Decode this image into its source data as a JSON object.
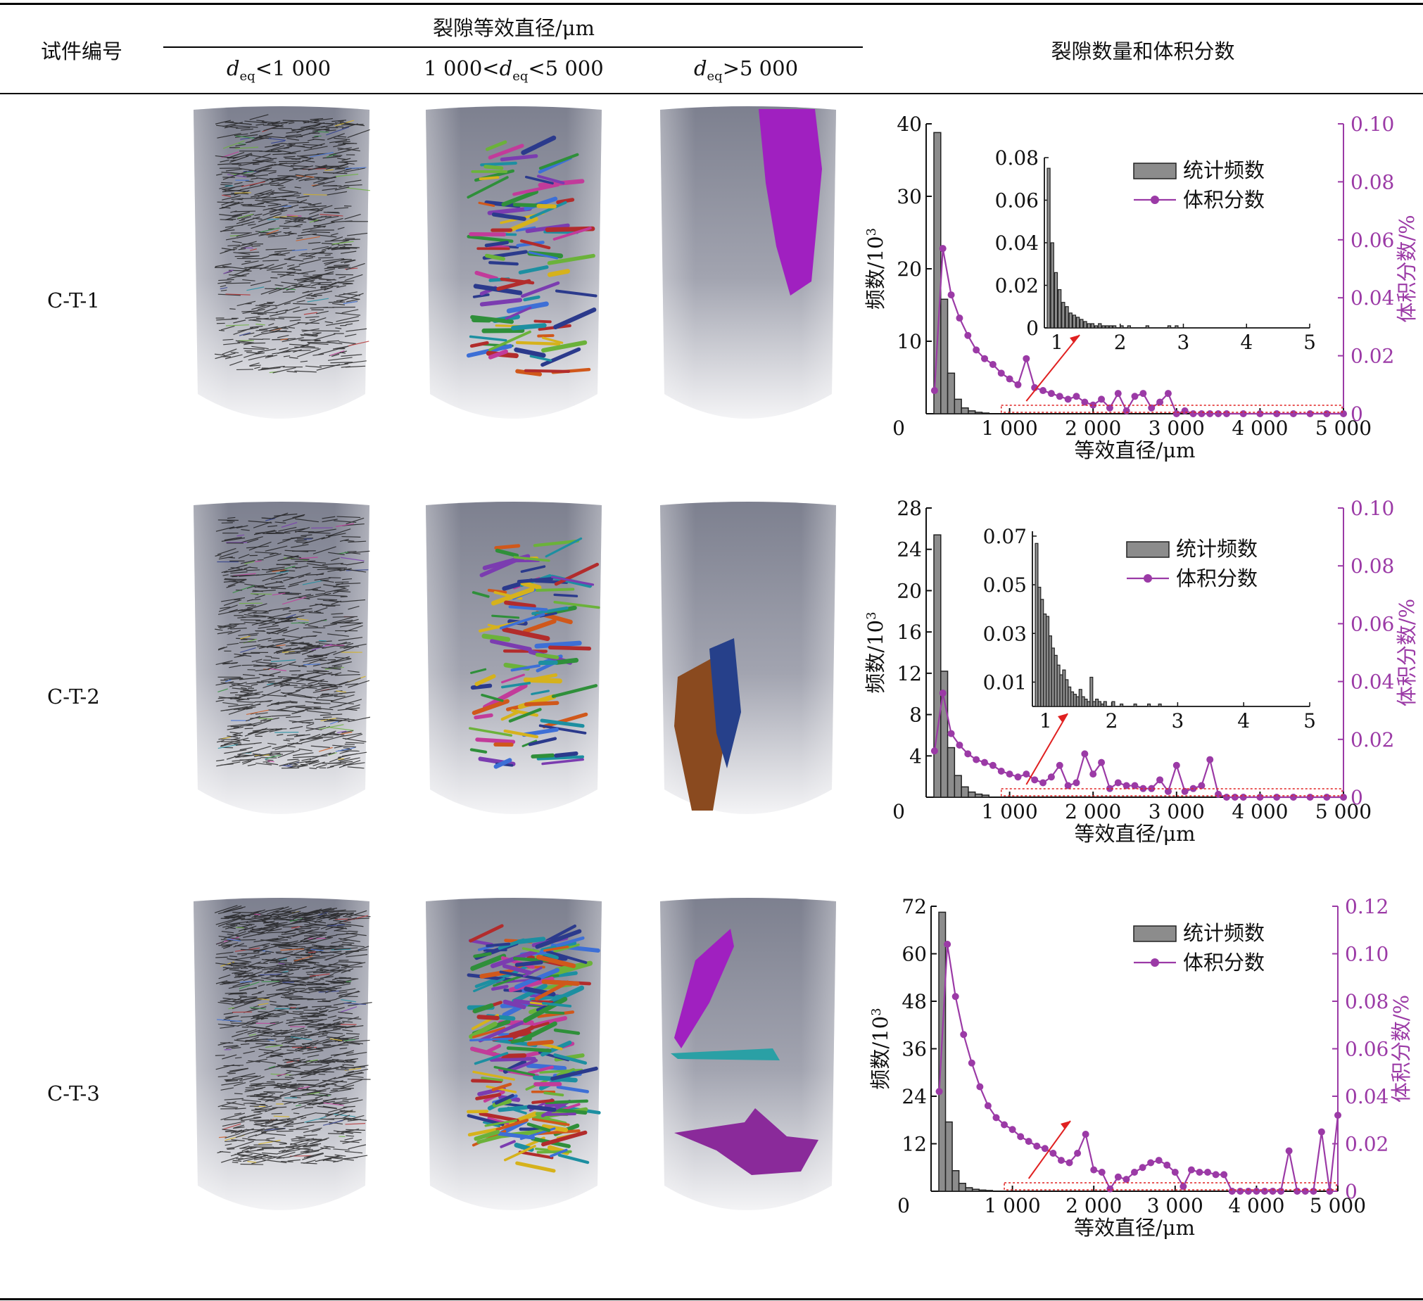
{
  "table": {
    "col_specimen": "试件编号",
    "col_diameter_group": "裂隙等效直径/μm",
    "col_d_small": {
      "d": "d",
      "sub": "eq",
      "rest": "<1 000"
    },
    "col_d_mid": {
      "pre": "1 000<",
      "d": "d",
      "sub": "eq",
      "rest": "<5 000"
    },
    "col_d_large": {
      "d": "d",
      "sub": "eq",
      "rest": ">5 000"
    },
    "col_stats": "裂隙数量和体积分数"
  },
  "rows": [
    {
      "label": "C-T-1"
    },
    {
      "label": "C-T-2"
    },
    {
      "label": "C-T-3"
    }
  ],
  "colors": {
    "bar": "#8c8c8c",
    "volume": "#9b3aa6",
    "callout": "#e02020",
    "cyl_top": "#7d808f",
    "cyl_bottom": "#f3f3f5"
  },
  "chart_data": [
    {
      "type": "bar+line",
      "xlabel": "等效直径/μm",
      "ylabel_left": "频数/10",
      "ylabel_left_sup": "3",
      "ylabel_right": "体积分数/%",
      "x_ticks": [
        "1 000",
        "2 000",
        "3 000",
        "4 000",
        "5 000"
      ],
      "y_ticks_left": [
        "0",
        "10",
        "20",
        "30",
        "40"
      ],
      "y_ticks_right": [
        "0",
        "0.02",
        "0.04",
        "0.06",
        "0.08",
        "0.10"
      ],
      "xlim": [
        0,
        5000
      ],
      "ylim_left": [
        0,
        40
      ],
      "ylim_right": [
        0,
        0.1
      ],
      "legend": [
        "统计频数",
        "体积分数"
      ],
      "bars": [
        38.8,
        15.8,
        5.6,
        2.0,
        0.8,
        0.4,
        0.2,
        0.1
      ],
      "volume_x": [
        100,
        200,
        300,
        400,
        500,
        600,
        700,
        800,
        900,
        1000,
        1100,
        1200,
        1300,
        1400,
        1500,
        1600,
        1700,
        1800,
        1900,
        2000,
        2100,
        2200,
        2300,
        2400,
        2500,
        2600,
        2700,
        2800,
        2900,
        3000,
        3100,
        3200,
        3300,
        3400,
        3500,
        3600,
        3800,
        4000,
        4200,
        4400,
        4600,
        4800,
        5000
      ],
      "volume_y": [
        0.008,
        0.057,
        0.041,
        0.033,
        0.027,
        0.022,
        0.019,
        0.017,
        0.014,
        0.012,
        0.01,
        0.019,
        0.009,
        0.008,
        0.007,
        0.006,
        0.005,
        0.006,
        0.004,
        0.003,
        0.005,
        0.002,
        0.007,
        0.001,
        0.006,
        0.007,
        0.002,
        0.004,
        0.007,
        0,
        0.001,
        0,
        0,
        0,
        0,
        0,
        0,
        0,
        0,
        0,
        0,
        0,
        0
      ],
      "inset": {
        "x_ticks": [
          "1",
          "2",
          "3",
          "4",
          "5"
        ],
        "y_ticks": [
          "0",
          "0.02",
          "0.04",
          "0.06",
          "0.08"
        ],
        "xlim": [
          0.8,
          5
        ],
        "ylim": [
          0,
          0.08
        ],
        "bars": [
          0.075,
          0.04,
          0.026,
          0.018,
          0.012,
          0.01,
          0.007,
          0.006,
          0.005,
          0.004,
          0.003,
          0.002,
          0.002,
          0.001,
          0.002,
          0.001,
          0.001,
          0.001,
          0.001,
          0,
          0.001,
          0,
          0.001,
          0,
          0,
          0,
          0,
          0.001,
          0,
          0,
          0,
          0,
          0,
          0.001,
          0,
          0.001
        ]
      }
    },
    {
      "type": "bar+line",
      "xlabel": "等效直径/μm",
      "ylabel_left": "频数/10",
      "ylabel_left_sup": "3",
      "ylabel_right": "体积分数/%",
      "x_ticks": [
        "1 000",
        "2 000",
        "3 000",
        "4 000",
        "5 000"
      ],
      "y_ticks_left": [
        "0",
        "4",
        "8",
        "12",
        "16",
        "20",
        "24",
        "28"
      ],
      "y_ticks_right": [
        "0",
        "0.02",
        "0.04",
        "0.06",
        "0.08",
        "0.10"
      ],
      "xlim": [
        0,
        5000
      ],
      "ylim_left": [
        0,
        28
      ],
      "ylim_right": [
        0,
        0.1
      ],
      "legend": [
        "统计频数",
        "体积分数"
      ],
      "bars": [
        25.4,
        12.2,
        4.8,
        2.1,
        1.0,
        0.5,
        0.3,
        0.2
      ],
      "volume_x": [
        100,
        200,
        300,
        400,
        500,
        600,
        700,
        800,
        900,
        1000,
        1100,
        1200,
        1300,
        1400,
        1500,
        1600,
        1700,
        1800,
        1900,
        2000,
        2100,
        2200,
        2300,
        2400,
        2500,
        2600,
        2700,
        2800,
        2900,
        3000,
        3100,
        3200,
        3300,
        3400,
        3500,
        3600,
        3700,
        3800,
        4000,
        4200,
        4400,
        4600,
        4800,
        5000
      ],
      "volume_y": [
        0.016,
        0.036,
        0.022,
        0.018,
        0.015,
        0.013,
        0.012,
        0.011,
        0.009,
        0.008,
        0.007,
        0.008,
        0.006,
        0.005,
        0.007,
        0.011,
        0.004,
        0.005,
        0.015,
        0.008,
        0.012,
        0.003,
        0.005,
        0.004,
        0.004,
        0.003,
        0.003,
        0.006,
        0.002,
        0.011,
        0.002,
        0.003,
        0.004,
        0.013,
        0.001,
        0,
        0,
        0,
        0,
        0,
        0,
        0,
        0,
        0
      ],
      "inset": {
        "x_ticks": [
          "1",
          "2",
          "3",
          "4",
          "5"
        ],
        "y_ticks": [
          "0.01",
          "0.03",
          "0.05",
          "0.07"
        ],
        "xlim": [
          0.8,
          5
        ],
        "ylim": [
          0,
          0.072
        ],
        "bars": [
          0.067,
          0.049,
          0.044,
          0.038,
          0.037,
          0.029,
          0.024,
          0.021,
          0.017,
          0.013,
          0.015,
          0.011,
          0.008,
          0.006,
          0.005,
          0.004,
          0.007,
          0.004,
          0.003,
          0.002,
          0.012,
          0.002,
          0.003,
          0.002,
          0.001,
          0.002,
          0,
          0,
          0.002,
          0,
          0,
          0.001,
          0,
          0,
          0,
          0,
          0.001,
          0,
          0,
          0,
          0,
          0.001,
          0,
          0,
          0,
          0.001
        ]
      }
    },
    {
      "type": "bar+line",
      "xlabel": "等效直径/μm",
      "ylabel_left": "频数/10",
      "ylabel_left_sup": "3",
      "ylabel_right": "体积分数/%",
      "x_ticks": [
        "1 000",
        "2 000",
        "3 000",
        "4 000",
        "5 000"
      ],
      "y_ticks_left": [
        "0",
        "12",
        "24",
        "36",
        "48",
        "60",
        "72"
      ],
      "y_ticks_right": [
        "0",
        "0.02",
        "0.04",
        "0.06",
        "0.08",
        "0.10",
        "0.12"
      ],
      "xlim": [
        0,
        5000
      ],
      "ylim_left": [
        0,
        72
      ],
      "ylim_right": [
        0,
        0.12
      ],
      "legend": [
        "统计频数",
        "体积分数"
      ],
      "bars": [
        70.5,
        17.5,
        5.2,
        2.0,
        0.9,
        0.5,
        0.3,
        0.2
      ],
      "volume_x": [
        100,
        200,
        300,
        400,
        500,
        600,
        700,
        800,
        900,
        1000,
        1100,
        1200,
        1300,
        1400,
        1500,
        1600,
        1700,
        1800,
        1900,
        2000,
        2100,
        2200,
        2300,
        2400,
        2500,
        2600,
        2700,
        2800,
        2900,
        3000,
        3100,
        3200,
        3300,
        3400,
        3500,
        3600,
        3700,
        3800,
        3900,
        4000,
        4100,
        4200,
        4300,
        4400,
        4500,
        4600,
        4700,
        4800,
        4900,
        5000
      ],
      "volume_y": [
        0.042,
        0.104,
        0.082,
        0.066,
        0.054,
        0.044,
        0.036,
        0.031,
        0.028,
        0.026,
        0.023,
        0.021,
        0.019,
        0.018,
        0.016,
        0.013,
        0.012,
        0.016,
        0.024,
        0.009,
        0.008,
        0.001,
        0.006,
        0.005,
        0.008,
        0.01,
        0.012,
        0.013,
        0.011,
        0.008,
        0.002,
        0.009,
        0.008,
        0.008,
        0.007,
        0.007,
        0,
        0,
        0,
        0,
        0,
        0,
        0,
        0.017,
        0,
        0,
        0,
        0.025,
        0,
        0.032
      ]
    }
  ]
}
